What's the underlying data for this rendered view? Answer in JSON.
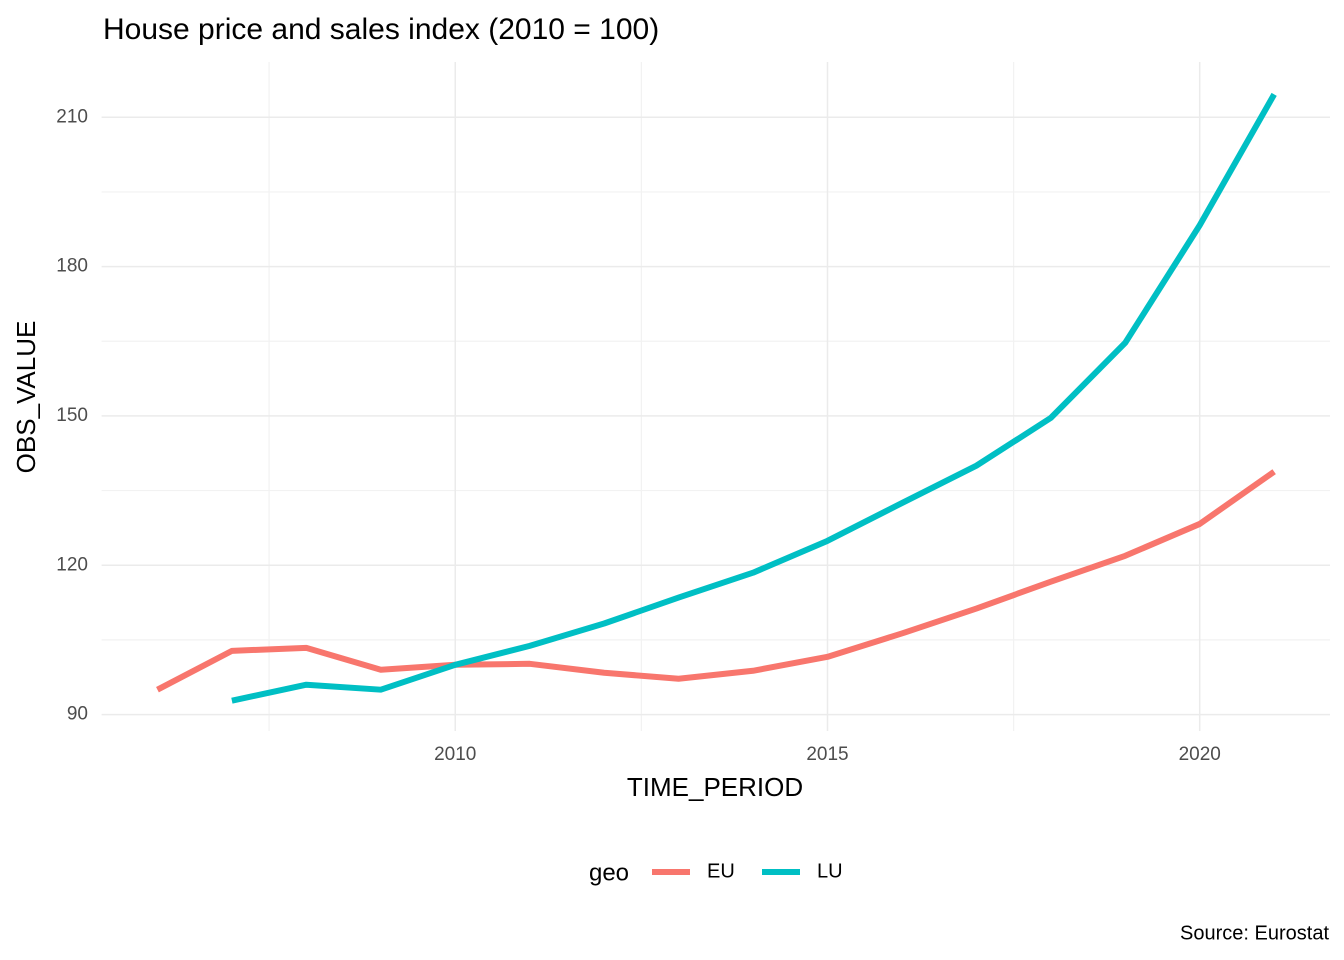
{
  "chart_data": {
    "type": "line",
    "title": "House price and sales index (2010 = 100)",
    "x_label": "TIME_PERIOD",
    "y_label": "OBS_VALUE",
    "x": [
      2006,
      2007,
      2008,
      2009,
      2010,
      2011,
      2012,
      2013,
      2014,
      2015,
      2016,
      2017,
      2018,
      2019,
      2020,
      2021
    ],
    "series": [
      {
        "name": "EU",
        "color": "#F8766D",
        "values": [
          95.0,
          102.8,
          103.4,
          99.0,
          100,
          100.2,
          98.4,
          97.2,
          98.8,
          101.6,
          106.3,
          111.3,
          116.7,
          121.9,
          128.3,
          138.8
        ]
      },
      {
        "name": "LU",
        "color": "#00BFC4",
        "values": [
          null,
          92.8,
          96.0,
          95.0,
          100,
          103.8,
          108.3,
          113.5,
          118.5,
          124.9,
          132.5,
          140.0,
          149.6,
          164.7,
          188.3,
          214.6
        ]
      }
    ],
    "xlim": [
      2005.25,
      2021.75
    ],
    "xticks": [
      2010,
      2015,
      2020
    ],
    "ylim": [
      86.7,
      220.7
    ],
    "yticks": [
      90,
      120,
      150,
      180,
      210
    ],
    "grid": true,
    "legend_title": "geo",
    "legend_position": "bottom",
    "caption": "Source: Eurostat"
  }
}
